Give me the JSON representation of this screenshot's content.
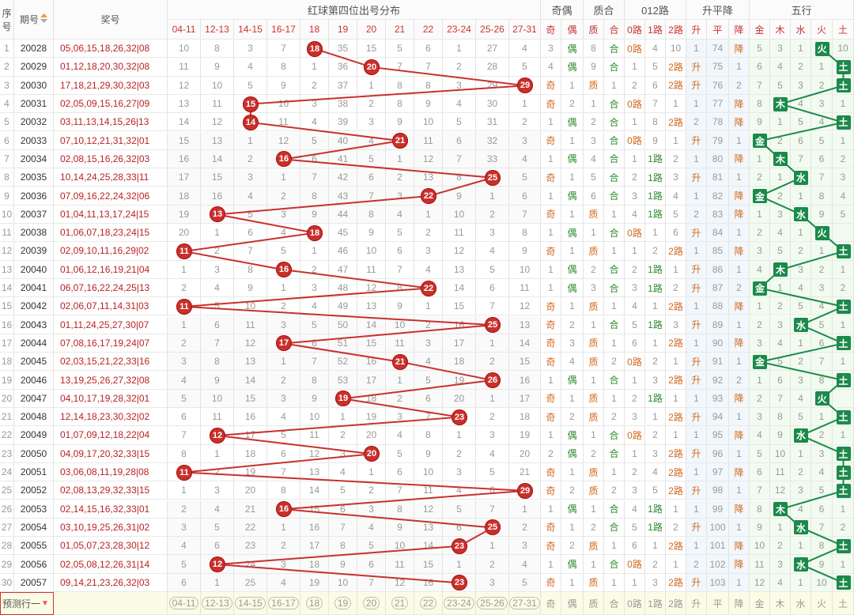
{
  "header": {
    "seq_label": "序号",
    "period_label": "期号",
    "nums_label": "奖号",
    "dist_title": "红球第四位出号分布",
    "oddeven_title": "奇偶",
    "primecomp_title": "质合",
    "route_title": "012路",
    "trend_title": "升平降",
    "wuxing_title": "五行",
    "zones": [
      "04-11",
      "12-13",
      "14-15",
      "16-17",
      "18",
      "19",
      "20",
      "21",
      "22",
      "23-24",
      "25-26",
      "27-31"
    ],
    "oddeven": [
      "奇",
      "偶"
    ],
    "primecomp": [
      "质",
      "合"
    ],
    "routes": [
      "0路",
      "1路",
      "2路"
    ],
    "trends": [
      "升",
      "平",
      "降"
    ],
    "wuxing": [
      "金",
      "木",
      "水",
      "火",
      "土"
    ]
  },
  "prediction_row": {
    "label": "预测行一"
  },
  "rows": [
    {
      "seq": "1",
      "period": "20028",
      "nums": "05,06,15,18,26,32|08",
      "zone": 4,
      "val": "18",
      "miss": [
        "10",
        "8",
        "3",
        "7",
        "",
        "35",
        "15",
        "5",
        "6",
        "1",
        "27",
        "4"
      ],
      "oe": [
        "3",
        "偶"
      ],
      "pc": [
        "8",
        "合"
      ],
      "rt": [
        "0路",
        "4",
        "10"
      ],
      "td": [
        "1",
        "74",
        "降"
      ],
      "wx": 3,
      "wxm": [
        "5",
        "3",
        "1",
        "",
        "10"
      ]
    },
    {
      "seq": "2",
      "period": "20029",
      "nums": "01,12,18,20,30,32|08",
      "zone": 6,
      "val": "20",
      "miss": [
        "11",
        "9",
        "4",
        "8",
        "1",
        "36",
        "",
        "7",
        "7",
        "2",
        "28",
        "5"
      ],
      "oe": [
        "4",
        "偶"
      ],
      "pc": [
        "9",
        "合"
      ],
      "rt": [
        "1",
        "5",
        "2路"
      ],
      "td": [
        "升",
        "75",
        "1"
      ],
      "wx": 4,
      "wxm": [
        "6",
        "4",
        "2",
        "1",
        ""
      ]
    },
    {
      "seq": "3",
      "period": "20030",
      "nums": "17,18,21,29,30,32|03",
      "zone": 11,
      "val": "29",
      "miss": [
        "12",
        "10",
        "5",
        "9",
        "2",
        "37",
        "1",
        "8",
        "8",
        "3",
        "29",
        ""
      ],
      "oe": [
        "奇",
        "1"
      ],
      "pc": [
        "质",
        "1"
      ],
      "rt": [
        "2",
        "6",
        "2路"
      ],
      "td": [
        "升",
        "76",
        "2"
      ],
      "wx": 4,
      "wxm": [
        "7",
        "5",
        "3",
        "2",
        ""
      ]
    },
    {
      "seq": "4",
      "period": "20031",
      "nums": "02,05,09,15,16,27|09",
      "zone": 2,
      "val": "15",
      "miss": [
        "13",
        "11",
        "",
        "10",
        "3",
        "38",
        "2",
        "8",
        "9",
        "4",
        "30",
        "1"
      ],
      "oe": [
        "奇",
        "2"
      ],
      "pc": [
        "1",
        "合"
      ],
      "rt": [
        "0路",
        "7",
        "1"
      ],
      "td": [
        "1",
        "77",
        "降"
      ],
      "wx": 1,
      "wxm": [
        "8",
        "",
        "4",
        "3",
        "1"
      ]
    },
    {
      "seq": "5",
      "period": "20032",
      "nums": "03,11,13,14,15,26|13",
      "zone": 2,
      "val": "14",
      "miss": [
        "14",
        "12",
        "",
        "11",
        "4",
        "39",
        "3",
        "9",
        "10",
        "5",
        "31",
        "2"
      ],
      "oe": [
        "1",
        "偶"
      ],
      "pc": [
        "2",
        "合"
      ],
      "rt": [
        "1",
        "8",
        "2路"
      ],
      "td": [
        "2",
        "78",
        "降"
      ],
      "wx": 4,
      "wxm": [
        "9",
        "1",
        "5",
        "4",
        ""
      ]
    },
    {
      "seq": "6",
      "period": "20033",
      "nums": "07,10,12,21,31,32|01",
      "zone": 7,
      "val": "21",
      "miss": [
        "15",
        "13",
        "1",
        "12",
        "5",
        "40",
        "4",
        "",
        "11",
        "6",
        "32",
        "3"
      ],
      "oe": [
        "奇",
        "1"
      ],
      "pc": [
        "3",
        "合"
      ],
      "rt": [
        "0路",
        "9",
        "1"
      ],
      "td": [
        "升",
        "79",
        "1"
      ],
      "wx": 0,
      "wxm": [
        "",
        "2",
        "6",
        "5",
        "1"
      ]
    },
    {
      "seq": "7",
      "period": "20034",
      "nums": "02,08,15,16,26,32|03",
      "zone": 3,
      "val": "16",
      "miss": [
        "16",
        "14",
        "2",
        "",
        "6",
        "41",
        "5",
        "1",
        "12",
        "7",
        "33",
        "4"
      ],
      "oe": [
        "1",
        "偶"
      ],
      "pc": [
        "4",
        "合"
      ],
      "rt": [
        "1",
        "1路",
        "2"
      ],
      "td": [
        "1",
        "80",
        "降"
      ],
      "wx": 1,
      "wxm": [
        "1",
        "",
        "7",
        "6",
        "2"
      ]
    },
    {
      "seq": "8",
      "period": "20035",
      "nums": "10,14,24,25,28,33|11",
      "zone": 10,
      "val": "25",
      "miss": [
        "17",
        "15",
        "3",
        "1",
        "7",
        "42",
        "6",
        "2",
        "13",
        "8",
        "",
        "5"
      ],
      "oe": [
        "奇",
        "1"
      ],
      "pc": [
        "5",
        "合"
      ],
      "rt": [
        "2",
        "1路",
        "3"
      ],
      "td": [
        "升",
        "81",
        "1"
      ],
      "wx": 2,
      "wxm": [
        "2",
        "1",
        "",
        "7",
        "3"
      ]
    },
    {
      "seq": "9",
      "period": "20036",
      "nums": "07,09,16,22,24,32|06",
      "zone": 8,
      "val": "22",
      "miss": [
        "18",
        "16",
        "4",
        "2",
        "8",
        "43",
        "7",
        "3",
        "",
        "9",
        "1",
        "6"
      ],
      "oe": [
        "1",
        "偶"
      ],
      "pc": [
        "6",
        "合"
      ],
      "rt": [
        "3",
        "1路",
        "4"
      ],
      "td": [
        "1",
        "82",
        "降"
      ],
      "wx": 0,
      "wxm": [
        "",
        "2",
        "1",
        "8",
        "4"
      ]
    },
    {
      "seq": "10",
      "period": "20037",
      "nums": "01,04,11,13,17,24|15",
      "zone": 1,
      "val": "13",
      "miss": [
        "19",
        "",
        "5",
        "3",
        "9",
        "44",
        "8",
        "4",
        "1",
        "10",
        "2",
        "7"
      ],
      "oe": [
        "奇",
        "1"
      ],
      "pc": [
        "质",
        "1"
      ],
      "rt": [
        "4",
        "1路",
        "5"
      ],
      "td": [
        "2",
        "83",
        "降"
      ],
      "wx": 2,
      "wxm": [
        "1",
        "3",
        "",
        "9",
        "5"
      ]
    },
    {
      "seq": "11",
      "period": "20038",
      "nums": "01,06,07,18,23,24|15",
      "zone": 4,
      "val": "18",
      "miss": [
        "20",
        "1",
        "6",
        "4",
        "",
        "45",
        "9",
        "5",
        "2",
        "11",
        "3",
        "8"
      ],
      "oe": [
        "1",
        "偶"
      ],
      "pc": [
        "1",
        "合"
      ],
      "rt": [
        "0路",
        "1",
        "6"
      ],
      "td": [
        "升",
        "84",
        "1"
      ],
      "wx": 3,
      "wxm": [
        "2",
        "4",
        "1",
        "",
        ""
      ]
    },
    {
      "seq": "12",
      "period": "20039",
      "nums": "02,09,10,11,16,29|02",
      "zone": 0,
      "val": "11",
      "miss": [
        "",
        "2",
        "7",
        "5",
        "1",
        "46",
        "10",
        "6",
        "3",
        "12",
        "4",
        "9"
      ],
      "oe": [
        "奇",
        "1"
      ],
      "pc": [
        "质",
        "1"
      ],
      "rt": [
        "1",
        "2",
        "2路"
      ],
      "td": [
        "1",
        "85",
        "降"
      ],
      "wx": 4,
      "wxm": [
        "3",
        "5",
        "2",
        "1",
        ""
      ]
    },
    {
      "seq": "13",
      "period": "20040",
      "nums": "01,06,12,16,19,21|04",
      "zone": 3,
      "val": "16",
      "miss": [
        "1",
        "3",
        "8",
        "",
        "2",
        "47",
        "11",
        "7",
        "4",
        "13",
        "5",
        "10"
      ],
      "oe": [
        "1",
        "偶"
      ],
      "pc": [
        "2",
        "合"
      ],
      "rt": [
        "2",
        "1路",
        "1"
      ],
      "td": [
        "升",
        "86",
        "1"
      ],
      "wx": 1,
      "wxm": [
        "4",
        "",
        "3",
        "2",
        "1"
      ]
    },
    {
      "seq": "14",
      "period": "20041",
      "nums": "06,07,16,22,24,25|13",
      "zone": 8,
      "val": "22",
      "miss": [
        "2",
        "4",
        "9",
        "1",
        "3",
        "48",
        "12",
        "8",
        "",
        "14",
        "6",
        "11"
      ],
      "oe": [
        "1",
        "偶"
      ],
      "pc": [
        "3",
        "合"
      ],
      "rt": [
        "3",
        "1路",
        "2"
      ],
      "td": [
        "升",
        "87",
        "2"
      ],
      "wx": 0,
      "wxm": [
        "",
        "1",
        "4",
        "3",
        "2"
      ]
    },
    {
      "seq": "15",
      "period": "20042",
      "nums": "02,06,07,11,14,31|03",
      "zone": 0,
      "val": "11",
      "miss": [
        "",
        "5",
        "10",
        "2",
        "4",
        "49",
        "13",
        "9",
        "1",
        "15",
        "7",
        "12"
      ],
      "oe": [
        "奇",
        "1"
      ],
      "pc": [
        "质",
        "1"
      ],
      "rt": [
        "4",
        "1",
        "2路"
      ],
      "td": [
        "1",
        "88",
        "降"
      ],
      "wx": 4,
      "wxm": [
        "1",
        "2",
        "5",
        "4",
        ""
      ]
    },
    {
      "seq": "16",
      "period": "20043",
      "nums": "01,11,24,25,27,30|07",
      "zone": 10,
      "val": "25",
      "miss": [
        "1",
        "6",
        "11",
        "3",
        "5",
        "50",
        "14",
        "10",
        "2",
        "16",
        "",
        "13"
      ],
      "oe": [
        "奇",
        "2"
      ],
      "pc": [
        "1",
        "合"
      ],
      "rt": [
        "5",
        "1路",
        "3"
      ],
      "td": [
        "升",
        "89",
        "1"
      ],
      "wx": 2,
      "wxm": [
        "2",
        "3",
        "",
        "5",
        "1"
      ]
    },
    {
      "seq": "17",
      "period": "20044",
      "nums": "07,08,16,17,19,24|07",
      "zone": 3,
      "val": "17",
      "miss": [
        "2",
        "7",
        "12",
        "",
        "6",
        "51",
        "15",
        "11",
        "3",
        "17",
        "1",
        "14"
      ],
      "oe": [
        "奇",
        "3"
      ],
      "pc": [
        "质",
        "1"
      ],
      "rt": [
        "6",
        "1",
        "2路"
      ],
      "td": [
        "1",
        "90",
        "降"
      ],
      "wx": 4,
      "wxm": [
        "3",
        "4",
        "1",
        "6",
        ""
      ]
    },
    {
      "seq": "18",
      "period": "20045",
      "nums": "02,03,15,21,22,33|16",
      "zone": 7,
      "val": "21",
      "miss": [
        "3",
        "8",
        "13",
        "1",
        "7",
        "52",
        "16",
        "",
        "4",
        "18",
        "2",
        "15"
      ],
      "oe": [
        "奇",
        "4"
      ],
      "pc": [
        "质",
        "2"
      ],
      "rt": [
        "0路",
        "2",
        "1"
      ],
      "td": [
        "升",
        "91",
        "1"
      ],
      "wx": 0,
      "wxm": [
        "",
        "5",
        "2",
        "7",
        "1"
      ]
    },
    {
      "seq": "19",
      "period": "20046",
      "nums": "13,19,25,26,27,32|08",
      "zone": 10,
      "val": "26",
      "miss": [
        "4",
        "9",
        "14",
        "2",
        "8",
        "53",
        "17",
        "1",
        "5",
        "19",
        "",
        "16"
      ],
      "oe": [
        "1",
        "偶"
      ],
      "pc": [
        "1",
        "合"
      ],
      "rt": [
        "1",
        "3",
        "2路"
      ],
      "td": [
        "升",
        "92",
        "2"
      ],
      "wx": 4,
      "wxm": [
        "1",
        "6",
        "3",
        "8",
        ""
      ]
    },
    {
      "seq": "20",
      "period": "20047",
      "nums": "04,10,17,19,28,32|01",
      "zone": 5,
      "val": "19",
      "miss": [
        "5",
        "10",
        "15",
        "3",
        "9",
        "",
        "18",
        "2",
        "6",
        "20",
        "1",
        "17"
      ],
      "oe": [
        "奇",
        "1"
      ],
      "pc": [
        "质",
        "1"
      ],
      "rt": [
        "2",
        "1路",
        "1"
      ],
      "td": [
        "1",
        "93",
        "降"
      ],
      "wx": 3,
      "wxm": [
        "2",
        "7",
        "4",
        "",
        ""
      ]
    },
    {
      "seq": "21",
      "period": "20048",
      "nums": "12,14,18,23,30,32|02",
      "zone": 9,
      "val": "23",
      "miss": [
        "6",
        "11",
        "16",
        "4",
        "10",
        "1",
        "19",
        "3",
        "7",
        "",
        "2",
        "18"
      ],
      "oe": [
        "奇",
        "2"
      ],
      "pc": [
        "质",
        "2"
      ],
      "rt": [
        "3",
        "1",
        "2路"
      ],
      "td": [
        "升",
        "94",
        "1"
      ],
      "wx": 4,
      "wxm": [
        "3",
        "8",
        "5",
        "1",
        ""
      ]
    },
    {
      "seq": "22",
      "period": "20049",
      "nums": "01,07,09,12,18,22|04",
      "zone": 1,
      "val": "12",
      "miss": [
        "7",
        "",
        "17",
        "5",
        "11",
        "2",
        "20",
        "4",
        "8",
        "1",
        "3",
        "19"
      ],
      "oe": [
        "1",
        "偶"
      ],
      "pc": [
        "1",
        "合"
      ],
      "rt": [
        "0路",
        "2",
        "1"
      ],
      "td": [
        "1",
        "95",
        "降"
      ],
      "wx": 2,
      "wxm": [
        "4",
        "9",
        "",
        "2",
        "1"
      ]
    },
    {
      "seq": "23",
      "period": "20050",
      "nums": "04,09,17,20,32,33|15",
      "zone": 6,
      "val": "20",
      "miss": [
        "8",
        "1",
        "18",
        "6",
        "12",
        "3",
        "",
        "5",
        "9",
        "2",
        "4",
        "20"
      ],
      "oe": [
        "2",
        "偶"
      ],
      "pc": [
        "2",
        "合"
      ],
      "rt": [
        "1",
        "3",
        "2路"
      ],
      "td": [
        "升",
        "96",
        "1"
      ],
      "wx": 4,
      "wxm": [
        "5",
        "10",
        "1",
        "3",
        ""
      ]
    },
    {
      "seq": "24",
      "period": "20051",
      "nums": "03,06,08,11,19,28|08",
      "zone": 0,
      "val": "11",
      "miss": [
        "",
        "2",
        "19",
        "7",
        "13",
        "4",
        "1",
        "6",
        "10",
        "3",
        "5",
        "21"
      ],
      "oe": [
        "奇",
        "1"
      ],
      "pc": [
        "质",
        "1"
      ],
      "rt": [
        "2",
        "4",
        "2路"
      ],
      "td": [
        "1",
        "97",
        "降"
      ],
      "wx": 4,
      "wxm": [
        "6",
        "11",
        "2",
        "4",
        ""
      ]
    },
    {
      "seq": "25",
      "period": "20052",
      "nums": "02,08,13,29,32,33|15",
      "zone": 11,
      "val": "29",
      "miss": [
        "1",
        "3",
        "20",
        "8",
        "14",
        "5",
        "2",
        "7",
        "11",
        "4",
        "6",
        ""
      ],
      "oe": [
        "奇",
        "2"
      ],
      "pc": [
        "质",
        "2"
      ],
      "rt": [
        "3",
        "5",
        "2路"
      ],
      "td": [
        "升",
        "98",
        "1"
      ],
      "wx": 4,
      "wxm": [
        "7",
        "12",
        "3",
        "5",
        ""
      ]
    },
    {
      "seq": "26",
      "period": "20053",
      "nums": "02,14,15,16,32,33|01",
      "zone": 3,
      "val": "16",
      "miss": [
        "2",
        "4",
        "21",
        "",
        "15",
        "6",
        "3",
        "8",
        "12",
        "5",
        "7",
        "1"
      ],
      "oe": [
        "1",
        "偶"
      ],
      "pc": [
        "1",
        "合"
      ],
      "rt": [
        "4",
        "1路",
        "1"
      ],
      "td": [
        "1",
        "99",
        "降"
      ],
      "wx": 1,
      "wxm": [
        "8",
        "",
        "4",
        "6",
        "1"
      ]
    },
    {
      "seq": "27",
      "period": "20054",
      "nums": "03,10,19,25,26,31|02",
      "zone": 10,
      "val": "25",
      "miss": [
        "3",
        "5",
        "22",
        "1",
        "16",
        "7",
        "4",
        "9",
        "13",
        "6",
        "",
        "2"
      ],
      "oe": [
        "奇",
        "1"
      ],
      "pc": [
        "2",
        "合"
      ],
      "rt": [
        "5",
        "1路",
        "2"
      ],
      "td": [
        "升",
        "100",
        "1"
      ],
      "wx": 2,
      "wxm": [
        "9",
        "1",
        "",
        "7",
        "2"
      ]
    },
    {
      "seq": "28",
      "period": "20055",
      "nums": "01,05,07,23,28,30|12",
      "zone": 9,
      "val": "23",
      "miss": [
        "4",
        "6",
        "23",
        "2",
        "17",
        "8",
        "5",
        "10",
        "14",
        "",
        "1",
        "3"
      ],
      "oe": [
        "奇",
        "2"
      ],
      "pc": [
        "质",
        "1"
      ],
      "rt": [
        "6",
        "1",
        "2路"
      ],
      "td": [
        "1",
        "101",
        "降"
      ],
      "wx": 4,
      "wxm": [
        "10",
        "2",
        "1",
        "8",
        ""
      ]
    },
    {
      "seq": "29",
      "period": "20056",
      "nums": "02,05,08,12,26,31|14",
      "zone": 1,
      "val": "12",
      "miss": [
        "5",
        "",
        "24",
        "3",
        "18",
        "9",
        "6",
        "11",
        "15",
        "1",
        "2",
        "4"
      ],
      "oe": [
        "1",
        "偶"
      ],
      "pc": [
        "1",
        "合"
      ],
      "rt": [
        "0路",
        "2",
        "1"
      ],
      "td": [
        "2",
        "102",
        "降"
      ],
      "wx": 2,
      "wxm": [
        "11",
        "3",
        "",
        "9",
        "1"
      ]
    },
    {
      "seq": "30",
      "period": "20057",
      "nums": "09,14,21,23,26,32|03",
      "zone": 9,
      "val": "23",
      "miss": [
        "6",
        "1",
        "25",
        "4",
        "19",
        "10",
        "7",
        "12",
        "16",
        "",
        "3",
        "5"
      ],
      "oe": [
        "奇",
        "1"
      ],
      "pc": [
        "质",
        "1"
      ],
      "rt": [
        "1",
        "3",
        "2路"
      ],
      "td": [
        "升",
        "103",
        "1"
      ],
      "wx": 4,
      "wxm": [
        "12",
        "4",
        "1",
        "10",
        ""
      ]
    }
  ],
  "colors": {
    "ball": "#c9302c",
    "line": "#c9302c",
    "wuxing": "#1a8a4a",
    "numbers": "#b22222"
  }
}
